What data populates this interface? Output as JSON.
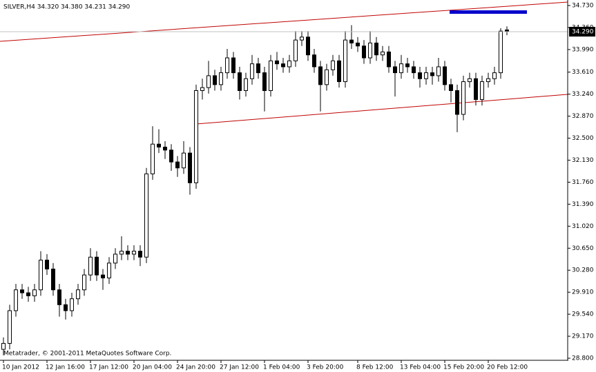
{
  "chart_data": {
    "type": "candlestick",
    "header": "SILVER,H4  34.320 34.380 34.231 34.290",
    "footer": "Metatrader, © 2001-2011 MetaQuotes Software Corp.",
    "categories": [
      "10 Jan 2012",
      null,
      null,
      null,
      null,
      null,
      null,
      "12 Jan 16:00",
      null,
      null,
      null,
      null,
      null,
      null,
      "17 Jan 12:00",
      null,
      null,
      null,
      null,
      null,
      null,
      "20 Jan 04:00",
      null,
      null,
      null,
      null,
      null,
      null,
      "24 Jan 20:00",
      null,
      null,
      null,
      null,
      null,
      null,
      "27 Jan 12:00",
      null,
      null,
      null,
      null,
      null,
      null,
      "1 Feb 04:00",
      null,
      null,
      null,
      null,
      null,
      null,
      "3 Feb 20:00",
      null,
      null,
      null,
      null,
      null,
      null,
      null,
      "8 Feb 12:00",
      null,
      null,
      null,
      null,
      null,
      null,
      "13 Feb 04:00",
      null,
      null,
      null,
      null,
      null,
      null,
      "15 Feb 20:00",
      null,
      null,
      null,
      null,
      null,
      null,
      "20 Feb 12:00",
      null,
      null,
      null
    ],
    "open": [
      28.95,
      29.05,
      29.6,
      29.95,
      29.9,
      29.85,
      29.95,
      30.45,
      30.3,
      29.95,
      29.7,
      29.6,
      29.8,
      29.95,
      30.2,
      30.5,
      30.2,
      30.15,
      30.4,
      30.55,
      30.6,
      30.55,
      30.6,
      30.5,
      31.9,
      32.4,
      32.35,
      32.3,
      32.1,
      32.0,
      32.25,
      31.75,
      33.3,
      33.35,
      33.55,
      33.4,
      33.6,
      33.85,
      33.6,
      33.3,
      33.5,
      33.75,
      33.6,
      33.3,
      33.8,
      33.75,
      33.7,
      33.8,
      34.15,
      34.2,
      33.9,
      33.7,
      33.4,
      33.65,
      33.8,
      33.45,
      34.15,
      34.1,
      34.05,
      33.85,
      34.1,
      33.9,
      33.95,
      33.7,
      33.6,
      33.75,
      33.7,
      33.6,
      33.5,
      33.6,
      33.55,
      33.7,
      33.4,
      33.3,
      32.9,
      33.45,
      33.5,
      33.15,
      33.45,
      33.5,
      33.6,
      34.32
    ],
    "high": [
      29.15,
      29.7,
      30.05,
      30.05,
      30.0,
      30.05,
      30.6,
      30.55,
      30.4,
      30.05,
      29.8,
      29.9,
      30.05,
      30.3,
      30.65,
      30.6,
      30.3,
      30.5,
      30.65,
      30.85,
      30.7,
      30.7,
      30.7,
      32.0,
      32.7,
      32.65,
      32.45,
      32.4,
      32.2,
      32.45,
      32.35,
      33.4,
      33.5,
      33.8,
      33.65,
      33.7,
      34.0,
      33.95,
      33.7,
      33.6,
      33.9,
      33.85,
      33.7,
      33.9,
      33.95,
      33.85,
      33.9,
      34.3,
      34.3,
      34.3,
      34.0,
      33.8,
      33.75,
      33.9,
      33.9,
      34.3,
      34.4,
      34.2,
      34.15,
      34.3,
      34.2,
      34.05,
      34.05,
      33.8,
      33.9,
      33.85,
      33.8,
      33.7,
      33.7,
      33.7,
      33.85,
      33.8,
      33.5,
      33.4,
      33.55,
      33.6,
      33.6,
      33.55,
      33.6,
      33.7,
      34.35,
      34.38
    ],
    "low": [
      28.85,
      28.95,
      29.5,
      29.8,
      29.75,
      29.75,
      29.85,
      30.2,
      29.85,
      29.5,
      29.45,
      29.5,
      29.7,
      29.85,
      30.1,
      30.1,
      29.95,
      30.05,
      30.3,
      30.45,
      30.45,
      30.45,
      30.35,
      30.4,
      31.8,
      32.25,
      32.15,
      31.95,
      31.85,
      31.9,
      31.55,
      31.65,
      33.15,
      33.25,
      33.3,
      33.3,
      33.5,
      33.5,
      33.15,
      33.2,
      33.4,
      33.5,
      32.95,
      33.2,
      33.65,
      33.6,
      33.6,
      33.7,
      34.05,
      33.8,
      33.6,
      32.95,
      33.3,
      33.55,
      33.35,
      33.35,
      34.0,
      33.95,
      33.75,
      33.75,
      33.8,
      33.8,
      33.6,
      33.2,
      33.5,
      33.6,
      33.5,
      33.35,
      33.4,
      33.4,
      33.45,
      33.3,
      33.1,
      32.6,
      32.8,
      33.35,
      33.05,
      33.05,
      33.35,
      33.4,
      33.5,
      34.231
    ],
    "close": [
      29.05,
      29.6,
      29.95,
      29.9,
      29.85,
      29.95,
      30.45,
      30.3,
      29.95,
      29.7,
      29.6,
      29.8,
      29.95,
      30.2,
      30.5,
      30.2,
      30.15,
      30.4,
      30.55,
      30.6,
      30.55,
      30.6,
      30.5,
      31.9,
      32.4,
      32.35,
      32.3,
      32.1,
      32.0,
      32.25,
      31.75,
      33.3,
      33.35,
      33.55,
      33.4,
      33.6,
      33.85,
      33.6,
      33.3,
      33.5,
      33.75,
      33.6,
      33.3,
      33.8,
      33.75,
      33.7,
      33.8,
      34.15,
      34.2,
      33.9,
      33.7,
      33.4,
      33.65,
      33.8,
      33.45,
      34.15,
      34.1,
      34.05,
      33.85,
      34.1,
      33.9,
      33.95,
      33.7,
      33.6,
      33.75,
      33.7,
      33.6,
      33.5,
      33.6,
      33.55,
      33.7,
      33.4,
      33.3,
      32.9,
      33.45,
      33.5,
      33.15,
      33.45,
      33.5,
      33.6,
      34.3,
      34.29
    ],
    "bid": {
      "value": 34.29,
      "label": "34.290"
    },
    "ylim": [
      28.754,
      34.823
    ],
    "yticks": [
      {
        "value": 34.73,
        "label": "34.730"
      },
      {
        "value": 34.36,
        "label": "34.360"
      },
      {
        "value": 33.99,
        "label": "33.990"
      },
      {
        "value": 33.61,
        "label": "33.610"
      },
      {
        "value": 33.24,
        "label": "33.240"
      },
      {
        "value": 32.87,
        "label": "32.870"
      },
      {
        "value": 32.5,
        "label": "32.500"
      },
      {
        "value": 32.13,
        "label": "32.130"
      },
      {
        "value": 31.76,
        "label": "31.760"
      },
      {
        "value": 31.39,
        "label": "31.390"
      },
      {
        "value": 31.02,
        "label": "31.020"
      },
      {
        "value": 30.65,
        "label": "30.650"
      },
      {
        "value": 30.28,
        "label": "30.280"
      },
      {
        "value": 29.91,
        "label": "29.910"
      },
      {
        "value": 29.54,
        "label": "29.540"
      },
      {
        "value": 29.17,
        "label": "29.170"
      },
      {
        "value": 28.8,
        "label": "28.800"
      }
    ],
    "up_color": "#ffffff",
    "down_color": "#000000",
    "outline_color": "#000000"
  }
}
